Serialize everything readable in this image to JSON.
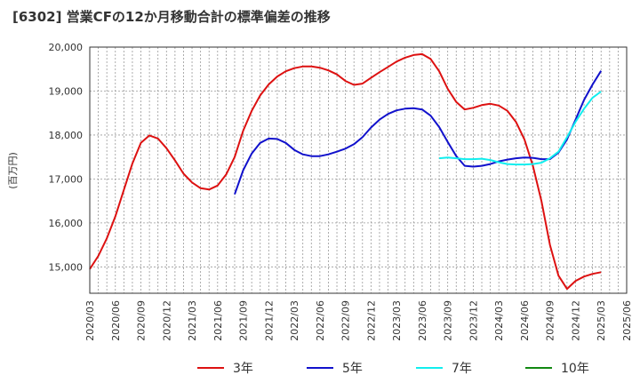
{
  "chart_data": {
    "type": "line",
    "title": "[6302]  営業CFの12か月移動合計の標準偏差の推移",
    "ylabel": "(百万円)",
    "xlabel": "",
    "ylim": [
      14400,
      20000
    ],
    "yticks": [
      15000,
      16000,
      17000,
      18000,
      19000,
      20000
    ],
    "ytick_labels": [
      "15,000",
      "16,000",
      "17,000",
      "18,000",
      "19,000",
      "20,000"
    ],
    "xtick_labels": [
      "2020/03",
      "2020/06",
      "2020/09",
      "2020/12",
      "2021/03",
      "2021/06",
      "2021/09",
      "2021/12",
      "2022/03",
      "2022/06",
      "2022/09",
      "2022/12",
      "2023/03",
      "2023/06",
      "2023/09",
      "2023/12",
      "2024/03",
      "2024/06",
      "2024/09",
      "2024/12",
      "2025/03",
      "2025/06"
    ],
    "x_start": "2020/03",
    "x_end": "2025/06",
    "grid": true,
    "legend_position": "bottom",
    "series": [
      {
        "name": "3年",
        "color": "#dd1111",
        "x": [
          "2020/03",
          "2020/04",
          "2020/05",
          "2020/06",
          "2020/07",
          "2020/08",
          "2020/09",
          "2020/10",
          "2020/11",
          "2020/12",
          "2021/01",
          "2021/02",
          "2021/03",
          "2021/04",
          "2021/05",
          "2021/06",
          "2021/07",
          "2021/08",
          "2021/09",
          "2021/10",
          "2021/11",
          "2021/12",
          "2022/01",
          "2022/02",
          "2022/03",
          "2022/04",
          "2022/05",
          "2022/06",
          "2022/07",
          "2022/08",
          "2022/09",
          "2022/10",
          "2022/11",
          "2022/12",
          "2023/01",
          "2023/02",
          "2023/03",
          "2023/04",
          "2023/05",
          "2023/06",
          "2023/07",
          "2023/08",
          "2023/09",
          "2023/10",
          "2023/11",
          "2023/12",
          "2024/01",
          "2024/02",
          "2024/03",
          "2024/04",
          "2024/05",
          "2024/06",
          "2024/07",
          "2024/08",
          "2024/09",
          "2024/10",
          "2024/11",
          "2024/12",
          "2025/01",
          "2025/02",
          "2025/03"
        ],
        "values": [
          14950,
          15250,
          15650,
          16150,
          16750,
          17350,
          17820,
          17990,
          17920,
          17700,
          17420,
          17120,
          16920,
          16790,
          16760,
          16850,
          17100,
          17500,
          18100,
          18550,
          18900,
          19150,
          19330,
          19450,
          19520,
          19560,
          19560,
          19530,
          19470,
          19380,
          19230,
          19140,
          19170,
          19300,
          19430,
          19550,
          19670,
          19760,
          19820,
          19840,
          19730,
          19450,
          19050,
          18750,
          18580,
          18620,
          18680,
          18710,
          18670,
          18550,
          18300,
          17900,
          17300,
          16500,
          15500,
          14800,
          14500,
          14680,
          14780,
          14840,
          14880
        ]
      },
      {
        "name": "5年",
        "color": "#1111cc",
        "x": [
          "2021/08",
          "2021/09",
          "2021/10",
          "2021/11",
          "2021/12",
          "2022/01",
          "2022/02",
          "2022/03",
          "2022/04",
          "2022/05",
          "2022/06",
          "2022/07",
          "2022/08",
          "2022/09",
          "2022/10",
          "2022/11",
          "2022/12",
          "2023/01",
          "2023/02",
          "2023/03",
          "2023/04",
          "2023/05",
          "2023/06",
          "2023/07",
          "2023/08",
          "2023/09",
          "2023/10",
          "2023/11",
          "2023/12",
          "2024/01",
          "2024/02",
          "2024/03",
          "2024/04",
          "2024/05",
          "2024/06",
          "2024/07",
          "2024/08",
          "2024/09",
          "2024/10",
          "2024/11",
          "2024/12",
          "2025/01",
          "2025/02",
          "2025/03"
        ],
        "values": [
          16650,
          17200,
          17580,
          17820,
          17920,
          17910,
          17820,
          17660,
          17560,
          17520,
          17520,
          17560,
          17620,
          17690,
          17790,
          17950,
          18170,
          18350,
          18480,
          18560,
          18600,
          18610,
          18580,
          18440,
          18180,
          17840,
          17520,
          17300,
          17280,
          17300,
          17340,
          17400,
          17440,
          17470,
          17490,
          17480,
          17450,
          17450,
          17600,
          17900,
          18350,
          18800,
          19150,
          19460
        ]
      },
      {
        "name": "7年",
        "color": "#11eeee",
        "x": [
          "2023/08",
          "2023/09",
          "2023/10",
          "2023/11",
          "2023/12",
          "2024/01",
          "2024/02",
          "2024/03",
          "2024/04",
          "2024/05",
          "2024/06",
          "2024/07",
          "2024/08",
          "2024/09",
          "2024/10",
          "2024/11",
          "2024/12",
          "2025/01",
          "2025/02",
          "2025/03"
        ],
        "values": [
          17470,
          17490,
          17470,
          17450,
          17450,
          17460,
          17430,
          17380,
          17340,
          17330,
          17330,
          17340,
          17370,
          17470,
          17620,
          17950,
          18300,
          18600,
          18850,
          18990
        ]
      },
      {
        "name": "10年",
        "color": "#118811",
        "x": [],
        "values": []
      }
    ]
  }
}
